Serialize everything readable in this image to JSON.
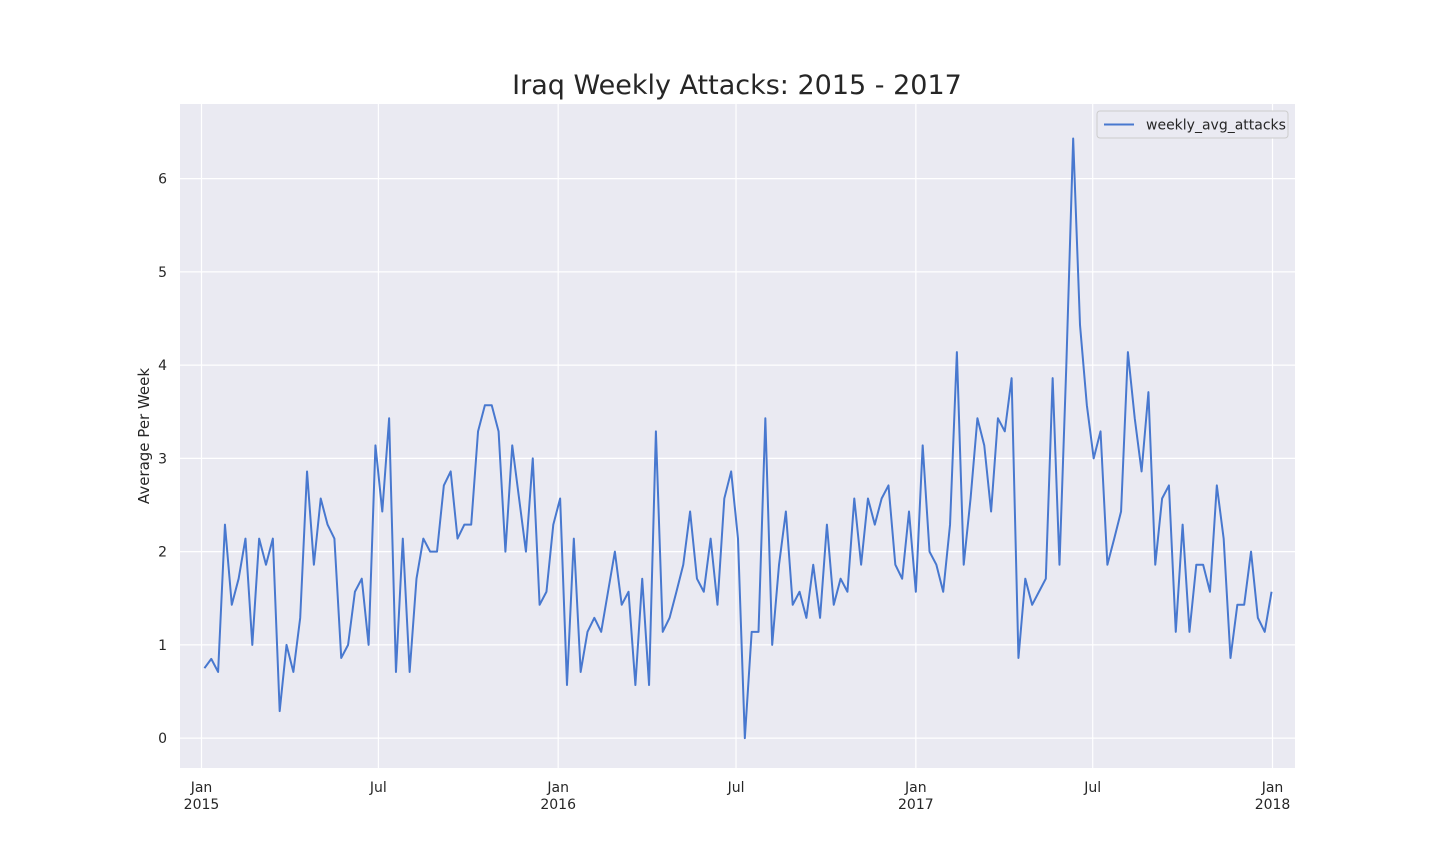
{
  "chart_data": {
    "type": "line",
    "title": "Iraq Weekly Attacks: 2015 - 2017",
    "xlabel": "",
    "ylabel": "Average Per Week",
    "x_axis": "weekly dates, 2015-01-04 through 2017-12-31",
    "ylim": [
      -0.32,
      6.8
    ],
    "yticks": [
      0,
      1,
      2,
      3,
      4,
      5,
      6
    ],
    "xticks": [
      {
        "date": "2015-01-01",
        "label_top": "Jan",
        "label_bottom": "2015"
      },
      {
        "date": "2015-07-01",
        "label_top": "Jul",
        "label_bottom": ""
      },
      {
        "date": "2016-01-01",
        "label_top": "Jan",
        "label_bottom": "2016"
      },
      {
        "date": "2016-07-01",
        "label_top": "Jul",
        "label_bottom": ""
      },
      {
        "date": "2017-01-01",
        "label_top": "Jan",
        "label_bottom": "2017"
      },
      {
        "date": "2017-07-01",
        "label_top": "Jul",
        "label_bottom": ""
      },
      {
        "date": "2018-01-01",
        "label_top": "Jan",
        "label_bottom": "2018"
      }
    ],
    "grid": true,
    "legend_position": "top-right",
    "background_color": "#eaeaf2",
    "series": [
      {
        "name": "weekly_avg_attacks",
        "color": "#4878cf",
        "start_date": "2015-01-04",
        "interval_days": 7,
        "values": [
          0.75,
          0.85,
          0.71,
          2.29,
          1.43,
          1.71,
          2.14,
          1.0,
          2.14,
          1.86,
          2.14,
          0.29,
          1.0,
          0.71,
          1.29,
          2.86,
          1.86,
          2.57,
          2.29,
          2.14,
          0.86,
          1.0,
          1.57,
          1.71,
          1.0,
          3.14,
          2.43,
          3.43,
          0.71,
          2.14,
          0.71,
          1.71,
          2.14,
          2.0,
          2.0,
          2.71,
          2.86,
          2.14,
          2.29,
          2.29,
          3.29,
          3.57,
          3.57,
          3.29,
          2.0,
          3.14,
          2.57,
          2.0,
          3.0,
          1.43,
          1.57,
          2.29,
          2.57,
          0.57,
          2.14,
          0.71,
          1.14,
          1.29,
          1.14,
          1.57,
          2.0,
          1.43,
          1.57,
          0.57,
          1.71,
          0.57,
          3.29,
          1.14,
          1.29,
          1.57,
          1.86,
          2.43,
          1.71,
          1.57,
          2.14,
          1.43,
          2.57,
          2.86,
          2.14,
          0.0,
          1.14,
          1.14,
          3.43,
          1.0,
          1.86,
          2.43,
          1.43,
          1.57,
          1.29,
          1.86,
          1.29,
          2.29,
          1.43,
          1.71,
          1.57,
          2.57,
          1.86,
          2.57,
          2.29,
          2.57,
          2.71,
          1.86,
          1.71,
          2.43,
          1.57,
          3.14,
          2.0,
          1.86,
          1.57,
          2.29,
          4.14,
          1.86,
          2.57,
          3.43,
          3.14,
          2.43,
          3.43,
          3.29,
          3.86,
          0.86,
          1.71,
          1.43,
          1.57,
          1.71,
          3.86,
          1.86,
          4.0,
          6.43,
          4.43,
          3.57,
          3.0,
          3.29,
          1.86,
          2.14,
          2.43,
          4.14,
          3.43,
          2.86,
          3.71,
          1.86,
          2.57,
          2.71,
          1.14,
          2.29,
          1.14,
          1.86,
          1.86,
          1.57,
          2.71,
          2.14,
          0.86,
          1.43,
          1.43,
          2.0,
          1.29,
          1.14,
          1.57
        ]
      }
    ]
  }
}
